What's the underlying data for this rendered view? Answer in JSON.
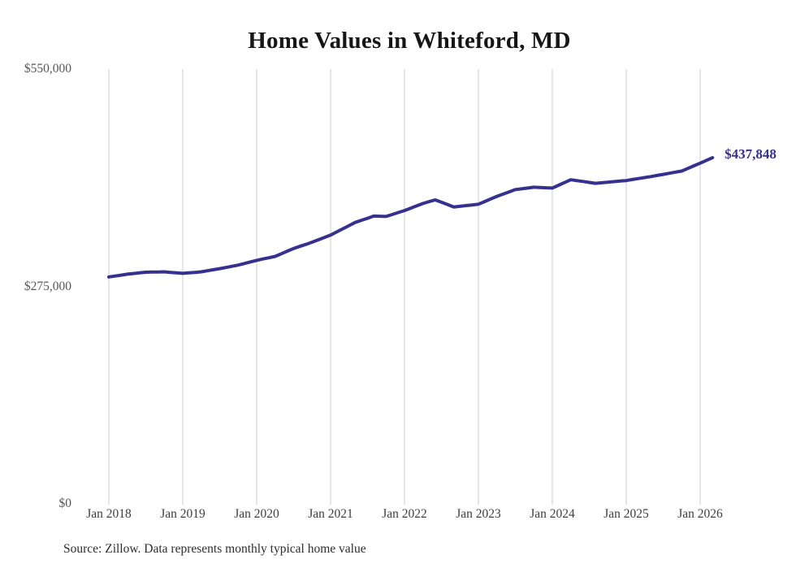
{
  "accent_color": "#36308e",
  "gridline_color": "#cccccc",
  "chart_data": {
    "type": "line",
    "title": "Home Values in Whiteford, MD",
    "source": "Source: Zillow. Data represents monthly typical home value",
    "end_label": "$437,848",
    "end_value": 437848,
    "xlabel": "",
    "ylabel": "",
    "ylim": [
      0,
      550000
    ],
    "grid": "vertical-only",
    "legend": "none",
    "line_color": "#36308e",
    "y_ticks": [
      {
        "value": 550000,
        "label": "$550,000"
      },
      {
        "value": 275000,
        "label": "$275,000"
      },
      {
        "value": 0,
        "label": "$0"
      }
    ],
    "x_ticks": [
      {
        "month_index": 0,
        "label": "Jan 2018"
      },
      {
        "month_index": 12,
        "label": "Jan 2019"
      },
      {
        "month_index": 24,
        "label": "Jan 2020"
      },
      {
        "month_index": 36,
        "label": "Jan 2021"
      },
      {
        "month_index": 48,
        "label": "Jan 2022"
      },
      {
        "month_index": 60,
        "label": "Jan 2023"
      },
      {
        "month_index": 72,
        "label": "Jan 2024"
      },
      {
        "month_index": 84,
        "label": "Jan 2025"
      },
      {
        "month_index": 96,
        "label": "Jan 2026"
      }
    ],
    "x": [
      "2018-01",
      "2018-02",
      "2018-03",
      "2018-04",
      "2018-05",
      "2018-06",
      "2018-07",
      "2018-08",
      "2018-09",
      "2018-10",
      "2018-11",
      "2018-12",
      "2019-01",
      "2019-02",
      "2019-03",
      "2019-04",
      "2019-05",
      "2019-06",
      "2019-07",
      "2019-08",
      "2019-09",
      "2019-10",
      "2019-11",
      "2019-12",
      "2020-01",
      "2020-02",
      "2020-03",
      "2020-04",
      "2020-05",
      "2020-06",
      "2020-07",
      "2020-08",
      "2020-09",
      "2020-10",
      "2020-11",
      "2020-12",
      "2021-01",
      "2021-02",
      "2021-03",
      "2021-04",
      "2021-05",
      "2021-06",
      "2021-07",
      "2021-08",
      "2021-09",
      "2021-10",
      "2021-11",
      "2021-12",
      "2022-01",
      "2022-02",
      "2022-03",
      "2022-04",
      "2022-05",
      "2022-06",
      "2022-07",
      "2022-08",
      "2022-09",
      "2022-10",
      "2022-11",
      "2022-12",
      "2023-01",
      "2023-02",
      "2023-03",
      "2023-04",
      "2023-05",
      "2023-06",
      "2023-07",
      "2023-08",
      "2023-09",
      "2023-10",
      "2023-11",
      "2023-12",
      "2024-01",
      "2024-02",
      "2024-03",
      "2024-04",
      "2024-05",
      "2024-06",
      "2024-07",
      "2024-08",
      "2024-09",
      "2024-10",
      "2024-11",
      "2024-12",
      "2025-01",
      "2025-02",
      "2025-03",
      "2025-04",
      "2025-05",
      "2025-06",
      "2025-07",
      "2025-08",
      "2025-09",
      "2025-10",
      "2025-11",
      "2025-12",
      "2026-01",
      "2026-02",
      "2026-03"
    ],
    "values": [
      287000,
      288200,
      289300,
      290500,
      291300,
      292200,
      293000,
      293200,
      293300,
      293500,
      292800,
      292200,
      291500,
      292200,
      292800,
      293500,
      294800,
      296200,
      297500,
      299000,
      300500,
      302000,
      304000,
      306000,
      308000,
      309700,
      311300,
      313000,
      316300,
      319700,
      323000,
      325700,
      328300,
      331000,
      334000,
      337000,
      340000,
      344000,
      348000,
      352000,
      356000,
      358700,
      361300,
      364000,
      363800,
      363500,
      366000,
      368500,
      371000,
      374000,
      377000,
      380000,
      382300,
      384500,
      381500,
      378500,
      375500,
      376400,
      377300,
      378100,
      379000,
      382300,
      385700,
      389000,
      391800,
      394700,
      397500,
      398500,
      399500,
      400500,
      400200,
      399800,
      399500,
      403000,
      406500,
      410000,
      408900,
      407800,
      406600,
      405500,
      406200,
      406900,
      407600,
      408300,
      409000,
      410300,
      411500,
      412800,
      414000,
      415400,
      416800,
      418200,
      419600,
      421000,
      424300,
      427700,
      431000,
      434400,
      437848
    ]
  }
}
